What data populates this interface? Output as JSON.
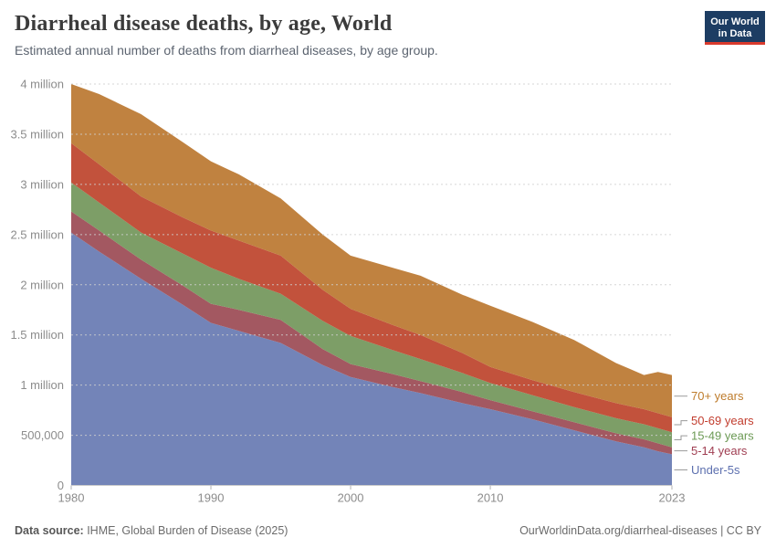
{
  "logo": {
    "line1": "Our World",
    "line2": "in Data",
    "bg_color": "#1d3d63",
    "stripe_color": "#d93a2d"
  },
  "chart_data": {
    "type": "area",
    "stacked": true,
    "title": "Diarrheal disease deaths, by age, World",
    "subtitle": "Estimated annual number of deaths from diarrheal diseases, by age group.",
    "units_note": "annual deaths, series values in millions",
    "x": [
      1980,
      1982,
      1985,
      1988,
      1990,
      1992,
      1995,
      1998,
      2000,
      2003,
      2005,
      2008,
      2010,
      2013,
      2016,
      2019,
      2020,
      2021,
      2022,
      2023
    ],
    "series": [
      {
        "id": "under-5s",
        "name": "Under-5s",
        "color": "#7384b8",
        "label_color": "#5d70af",
        "values": [
          2.52,
          2.33,
          2.06,
          1.8,
          1.62,
          1.54,
          1.42,
          1.2,
          1.08,
          0.98,
          0.92,
          0.82,
          0.76,
          0.66,
          0.55,
          0.44,
          0.41,
          0.38,
          0.34,
          0.31
        ]
      },
      {
        "id": "5-14-years",
        "name": "5-14 years",
        "color": "#a35861",
        "label_color": "#a03e52",
        "values": [
          0.21,
          0.21,
          0.19,
          0.19,
          0.19,
          0.21,
          0.23,
          0.16,
          0.13,
          0.13,
          0.12,
          0.11,
          0.09,
          0.08,
          0.08,
          0.08,
          0.08,
          0.08,
          0.08,
          0.07
        ]
      },
      {
        "id": "15-49-years",
        "name": "15-49 years",
        "color": "#7d9e67",
        "label_color": "#6c9a55",
        "values": [
          0.29,
          0.28,
          0.27,
          0.32,
          0.36,
          0.31,
          0.26,
          0.28,
          0.28,
          0.24,
          0.22,
          0.19,
          0.17,
          0.16,
          0.15,
          0.15,
          0.15,
          0.15,
          0.15,
          0.15
        ]
      },
      {
        "id": "50-69-years",
        "name": "50-69 years",
        "color": "#c2523c",
        "label_color": "#c23d2e",
        "values": [
          0.39,
          0.38,
          0.36,
          0.36,
          0.37,
          0.38,
          0.38,
          0.31,
          0.27,
          0.25,
          0.24,
          0.2,
          0.16,
          0.15,
          0.15,
          0.15,
          0.15,
          0.15,
          0.15,
          0.15
        ]
      },
      {
        "id": "70-plus-years",
        "name": "70+ years",
        "color": "#c08240",
        "label_color": "#be7c2c",
        "values": [
          0.59,
          0.7,
          0.82,
          0.75,
          0.69,
          0.66,
          0.57,
          0.55,
          0.53,
          0.57,
          0.59,
          0.58,
          0.61,
          0.58,
          0.52,
          0.4,
          0.37,
          0.34,
          0.41,
          0.42
        ]
      }
    ],
    "ylim_millions": [
      0,
      4
    ],
    "yticks": [
      {
        "v": 0,
        "label": "0"
      },
      {
        "v": 0.5,
        "label": "500,000"
      },
      {
        "v": 1,
        "label": "1 million"
      },
      {
        "v": 1.5,
        "label": "1.5 million"
      },
      {
        "v": 2,
        "label": "2 million"
      },
      {
        "v": 2.5,
        "label": "2.5 million"
      },
      {
        "v": 3,
        "label": "3 million"
      },
      {
        "v": 3.5,
        "label": "3.5 million"
      },
      {
        "v": 4,
        "label": "4 million"
      }
    ],
    "xticks": [
      1980,
      1990,
      2000,
      2010,
      2023
    ],
    "grid": "horizontal-dashed",
    "legend_position": "right"
  },
  "footer": {
    "source_label": "Data source:",
    "source_text": " IHME, Global Burden of Disease (2025)",
    "right_text": "OurWorldinData.org/diarrheal-diseases | CC BY"
  }
}
